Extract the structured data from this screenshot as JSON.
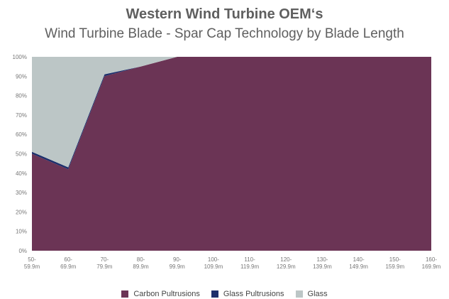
{
  "chart_data": {
    "type": "area",
    "stacked": true,
    "title": "Western Wind Turbine OEM‘s",
    "subtitle": "Wind Turbine Blade - Spar Cap Technology by Blade Length",
    "categories": [
      [
        "50-",
        "59.9m"
      ],
      [
        "60-",
        "69.9m"
      ],
      [
        "70-",
        "79.9m"
      ],
      [
        "80-",
        "89.9m"
      ],
      [
        "90-",
        "99.9m"
      ],
      [
        "100-",
        "109.9m"
      ],
      [
        "110-",
        "119.9m"
      ],
      [
        "120-",
        "129.9m"
      ],
      [
        "130-",
        "139.9m"
      ],
      [
        "140-",
        "149.9m"
      ],
      [
        "150-",
        "159.9m"
      ],
      [
        "160-",
        "169.9m"
      ]
    ],
    "y_ticks": [
      "0%",
      "10%",
      "20%",
      "30%",
      "40%",
      "50%",
      "60%",
      "70%",
      "80%",
      "90%",
      "100%"
    ],
    "ylim": [
      0,
      100
    ],
    "legend_position": "bottom",
    "series": [
      {
        "name": "Carbon Pultrusions",
        "color": "#6b3455",
        "values": [
          50,
          42,
          90,
          95,
          100,
          100,
          100,
          100,
          100,
          100,
          100,
          100
        ]
      },
      {
        "name": "Glass Pultrusions",
        "color": "#1c2f6b",
        "values": [
          1,
          1,
          1,
          0,
          0,
          0,
          0,
          0,
          0,
          0,
          0,
          0
        ]
      },
      {
        "name": "Glass",
        "color": "#bcc6c6",
        "values": [
          49,
          57,
          9,
          5,
          0,
          0,
          0,
          0,
          0,
          0,
          0,
          0
        ]
      }
    ]
  }
}
